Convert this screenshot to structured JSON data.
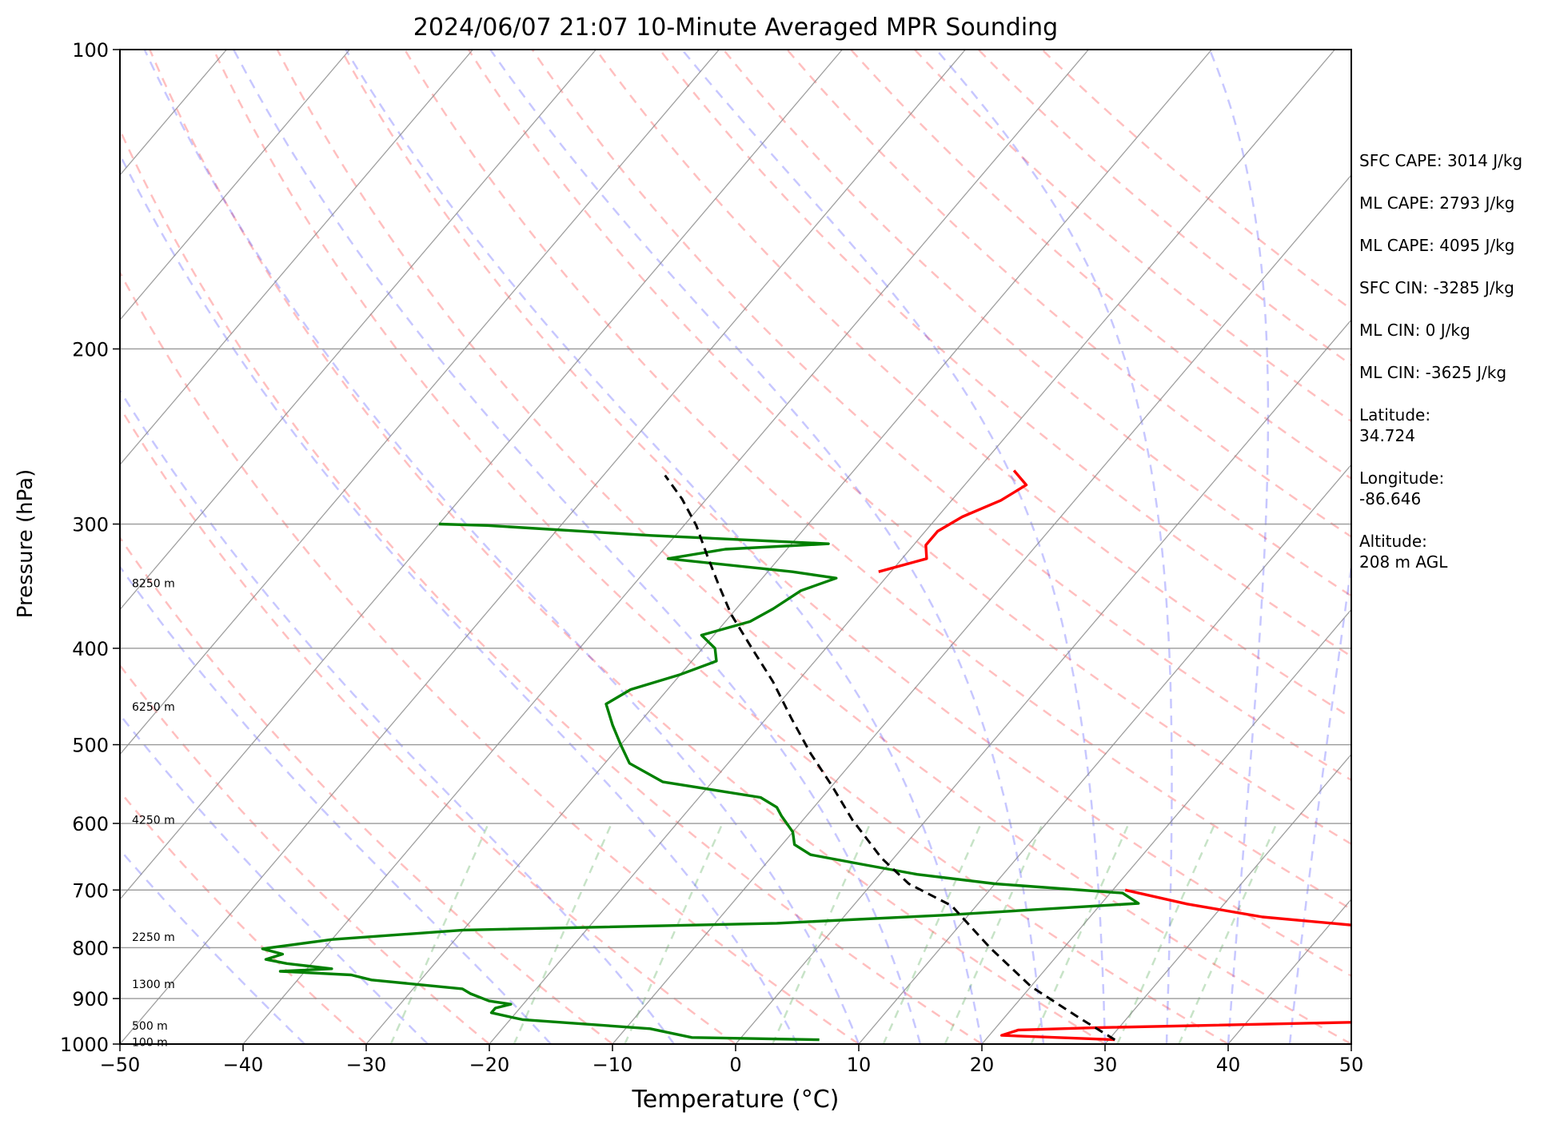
{
  "chart_data": {
    "type": "skew-t sounding",
    "title": "2024/06/07 21:07 10-Minute Averaged MPR Sounding",
    "xlabel": "Temperature (°C)",
    "ylabel": "Pressure (hPa)",
    "xlim": [
      -50,
      50
    ],
    "ylim": [
      1000,
      100
    ],
    "y_scale": "log",
    "grid": true,
    "x_ticks": [
      "−50",
      "−40",
      "−30",
      "−20",
      "−10",
      "0",
      "10",
      "20",
      "30",
      "40",
      "50"
    ],
    "y_ticks": [
      "100",
      "200",
      "300",
      "400",
      "500",
      "600",
      "700",
      "800",
      "900",
      "1000"
    ],
    "height_labels": [
      "8250 m",
      "6250 m",
      "4250 m",
      "2250 m",
      "1300 m",
      "500 m",
      "100 m"
    ],
    "series": [
      {
        "role": "temperature",
        "color": "#ff0000",
        "points": [
          [
            30.5,
            990
          ],
          [
            21,
            980
          ],
          [
            22,
            968
          ],
          [
            28,
            963
          ],
          [
            50,
            950
          ]
        ]
      },
      {
        "role": "temperature-upper",
        "color": "#ff0000",
        "points": [
          [
            50,
            775
          ],
          [
            45,
            765
          ],
          [
            34,
            745
          ],
          [
            27,
            723
          ],
          [
            21,
            700
          ]
        ]
      },
      {
        "role": "temperature-upper-trop",
        "color": "#ff0000",
        "points": [
          [
            -21,
            335
          ],
          [
            -18,
            325
          ],
          [
            -19,
            315
          ],
          [
            -19,
            305
          ],
          [
            -18,
            295
          ],
          [
            -16,
            284
          ],
          [
            -15,
            274
          ],
          [
            -17,
            265
          ]
        ]
      },
      {
        "role": "dewpoint",
        "color": "#008000",
        "points": [
          [
            6.5,
            990
          ],
          [
            -4,
            985
          ],
          [
            -6,
            975
          ],
          [
            -8,
            965
          ],
          [
            -19,
            945
          ],
          [
            -20,
            940
          ],
          [
            -22,
            930
          ],
          [
            -22,
            920
          ],
          [
            -21,
            912
          ],
          [
            -23,
            905
          ],
          [
            -25,
            890
          ],
          [
            -26,
            880
          ],
          [
            -34,
            862
          ],
          [
            -36,
            852
          ],
          [
            -42,
            845
          ],
          [
            -38,
            840
          ],
          [
            -42,
            830
          ],
          [
            -44,
            822
          ],
          [
            -43,
            812
          ],
          [
            -45,
            802
          ],
          [
            -40,
            785
          ],
          [
            -30,
            768
          ],
          [
            -5,
            756
          ],
          [
            8,
            742
          ],
          [
            23,
            722
          ],
          [
            21,
            705
          ],
          [
            10,
            690
          ],
          [
            3,
            675
          ],
          [
            -2,
            660
          ],
          [
            -7,
            645
          ],
          [
            -9,
            630
          ],
          [
            -10,
            612
          ],
          [
            -12,
            590
          ],
          [
            -13,
            578
          ],
          [
            -15,
            565
          ],
          [
            -24,
            545
          ],
          [
            -28,
            522
          ],
          [
            -30,
            500
          ],
          [
            -32,
            478
          ],
          [
            -34,
            455
          ],
          [
            -33,
            440
          ],
          [
            -30,
            425
          ],
          [
            -28,
            412
          ],
          [
            -29,
            400
          ],
          [
            -31,
            388
          ],
          [
            -28,
            376
          ],
          [
            -27,
            365
          ],
          [
            -26,
            350
          ],
          [
            -24,
            340
          ],
          [
            -28,
            335
          ],
          [
            -39,
            325
          ],
          [
            -35,
            318
          ],
          [
            -27,
            314
          ],
          [
            -42,
            308
          ],
          [
            -56,
            301
          ],
          [
            -60,
            300
          ]
        ]
      },
      {
        "role": "parcel",
        "color": "#000000",
        "dash": "dashed",
        "points": [
          [
            30.5,
            990
          ],
          [
            26,
            940
          ],
          [
            20,
            875
          ],
          [
            14,
            800
          ],
          [
            8,
            726
          ],
          [
            3,
            690
          ],
          [
            -1,
            650
          ],
          [
            -6,
            595
          ],
          [
            -10,
            550
          ],
          [
            -14,
            510
          ],
          [
            -18,
            470
          ],
          [
            -22,
            432
          ],
          [
            -26,
            400
          ],
          [
            -30,
            370
          ],
          [
            -33,
            346
          ],
          [
            -36,
            323
          ],
          [
            -39,
            301
          ],
          [
            -42,
            283
          ],
          [
            -45,
            268
          ]
        ]
      }
    ]
  },
  "info_panel": {
    "sfc_cape": "SFC CAPE: 3014 J/kg",
    "ml_cape_1": "ML CAPE: 2793 J/kg",
    "ml_cape_2": "ML CAPE: 4095 J/kg",
    "sfc_cin": "SFC CIN: -3285 J/kg",
    "ml_cin_1": "ML CIN: 0 J/kg",
    "ml_cin_2": "ML CIN: -3625 J/kg",
    "latitude": "Latitude:\n34.724",
    "longitude": "Longitude:\n-86.646",
    "altitude": "Altitude:\n208 m AGL"
  }
}
